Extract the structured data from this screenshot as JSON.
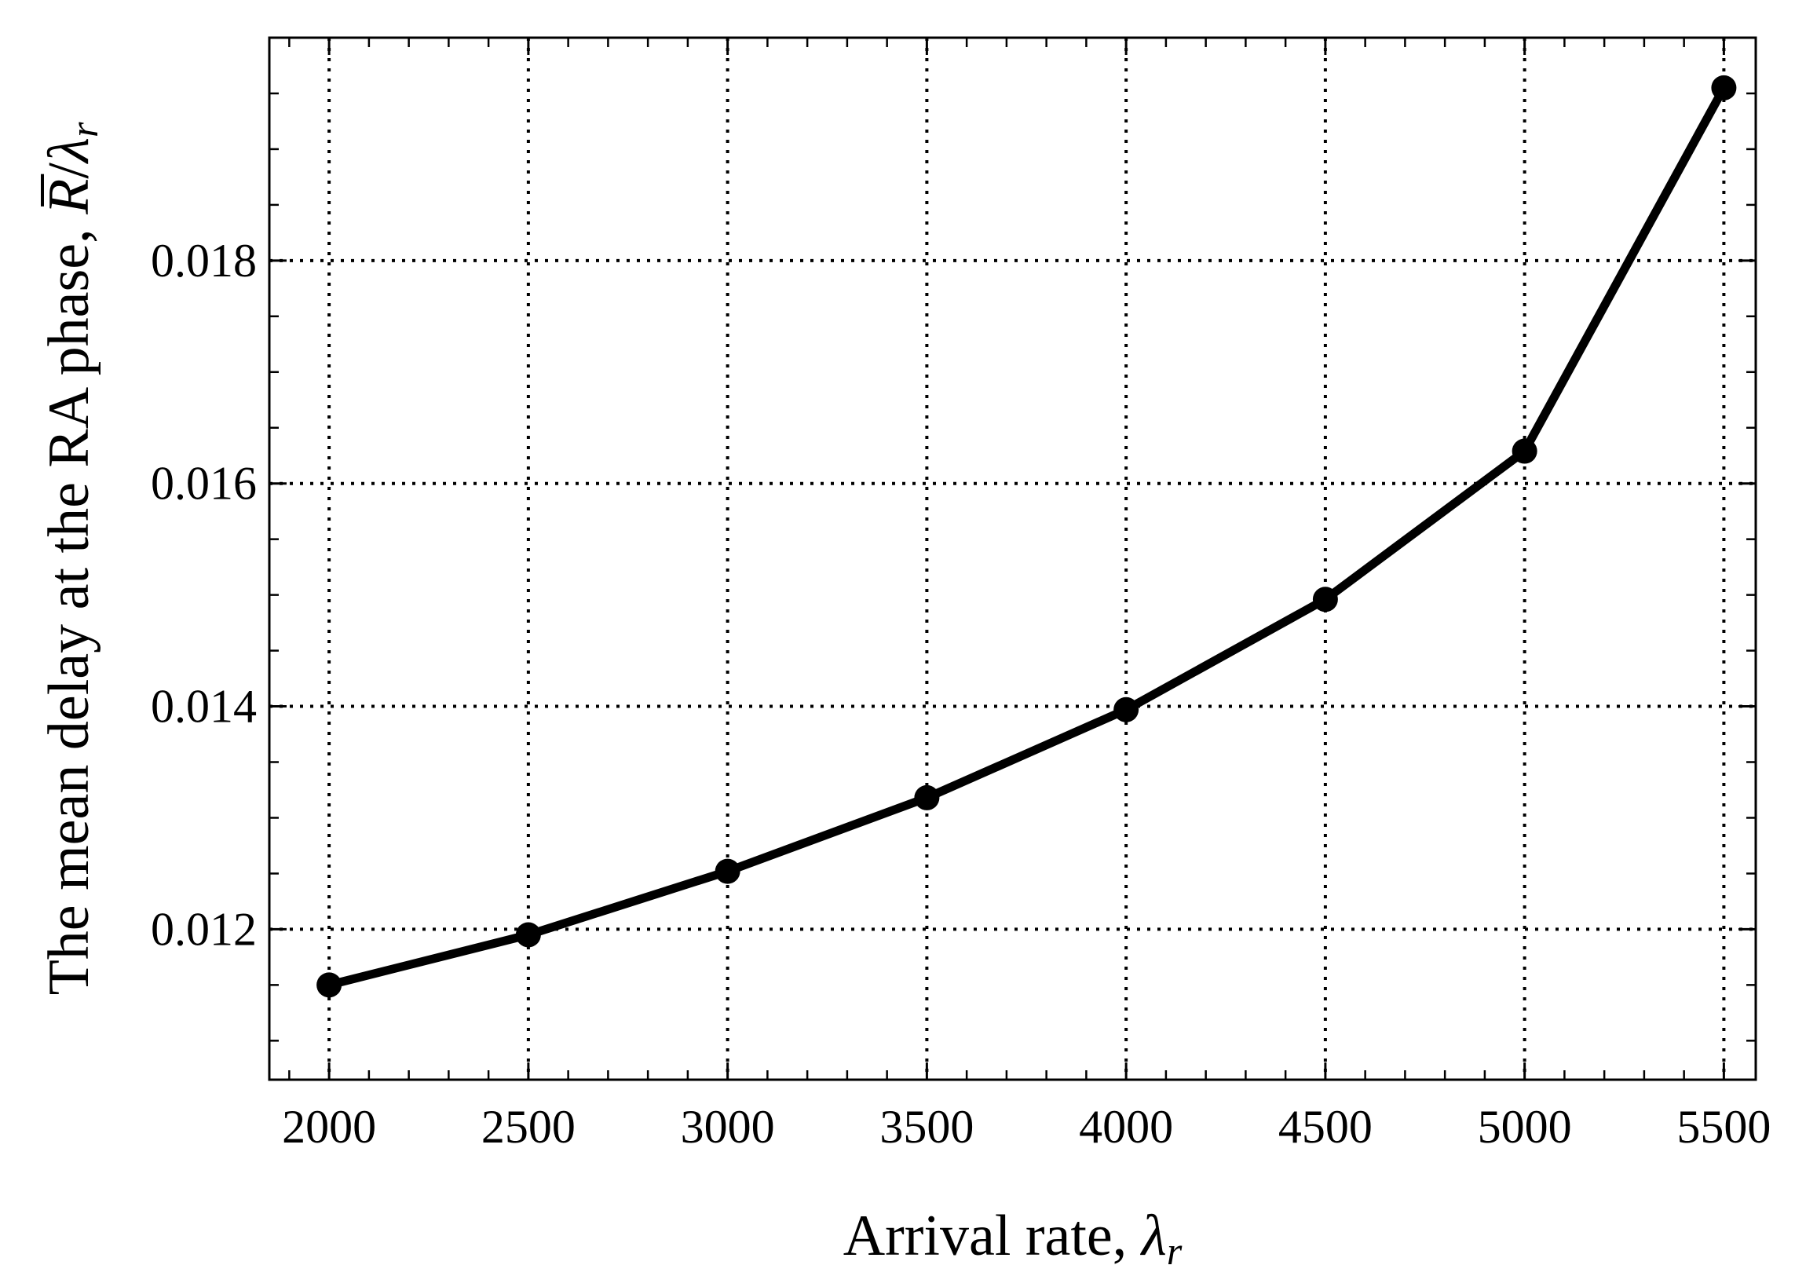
{
  "chart_data": {
    "type": "line",
    "title": "",
    "xlabel": {
      "text": "Arrival rate, ",
      "math_symbol": "λ",
      "math_subscript": "r"
    },
    "ylabel": {
      "text": "The mean delay at the RA phase, ",
      "math_overbar": "R",
      "math_separator": "/",
      "math_symbol": "λ",
      "math_subscript": "r"
    },
    "x": [
      2000,
      2500,
      3000,
      3500,
      4000,
      4500,
      5000,
      5500
    ],
    "series": [
      {
        "values": [
          0.0115,
          0.01195,
          0.01252,
          0.01318,
          0.01397,
          0.01496,
          0.01629,
          0.01955
        ],
        "color": "#000000",
        "marker": "circle"
      }
    ],
    "xlim": [
      1850,
      5580
    ],
    "ylim": [
      0.01065,
      0.02
    ],
    "xticks": [
      2000,
      2500,
      3000,
      3500,
      4000,
      4500,
      5000,
      5500
    ],
    "xtick_labels": [
      "2000",
      "2500",
      "3000",
      "3500",
      "4000",
      "4500",
      "5000",
      "5500"
    ],
    "yticks": [
      0.012,
      0.014,
      0.016,
      0.018
    ],
    "ytick_labels": [
      "0.012",
      "0.014",
      "0.016",
      "0.018"
    ],
    "x_minor_step": 100,
    "y_minor_step": 0.0005,
    "grid": true,
    "grid_style": "dotted",
    "legend": "none"
  }
}
